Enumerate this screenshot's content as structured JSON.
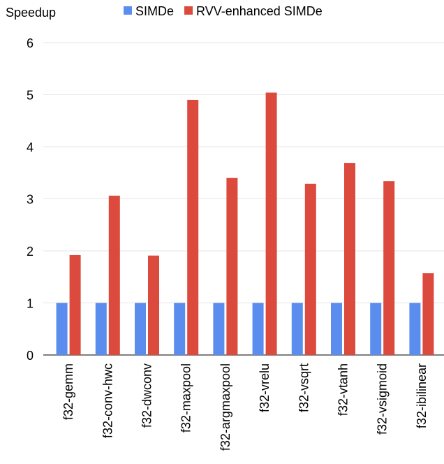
{
  "chart_data": {
    "type": "bar",
    "title": "",
    "ylabel": "Speedup",
    "xlabel": "",
    "ylim": [
      0,
      6
    ],
    "yticks": [
      0,
      1,
      2,
      3,
      4,
      5,
      6
    ],
    "grid": true,
    "legend_position": "top",
    "categories": [
      "f32-gemm",
      "f32-conv-hwc",
      "f32-dwconv",
      "f32-maxpool",
      "f32-argmaxpool",
      "f32-vrelu",
      "f32-vsqrt",
      "f32-vtanh",
      "f32-vsigmoid",
      "f32-ibilinear"
    ],
    "series": [
      {
        "name": "SIMDe",
        "color": "#5b8def",
        "values": [
          1,
          1,
          1,
          1,
          1,
          1,
          1,
          1,
          1,
          1
        ]
      },
      {
        "name": "RVV-enhanced SIMDe",
        "color": "#dc4a3d",
        "values": [
          1.92,
          3.06,
          1.91,
          4.9,
          3.4,
          5.04,
          3.29,
          3.69,
          3.34,
          1.57
        ]
      }
    ]
  }
}
